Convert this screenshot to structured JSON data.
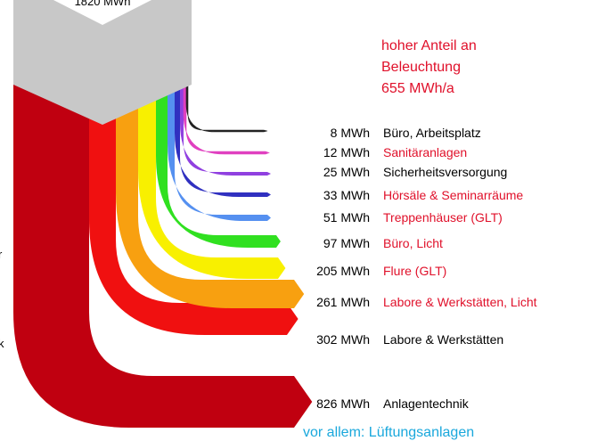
{
  "top_label": "1820 MWh",
  "annotation": {
    "lines": [
      "hoher Anteil an",
      "Beleuchtung",
      "655 MWh/a"
    ]
  },
  "flows": [
    {
      "value": "8 MWh",
      "name": "Büro, Arbeitsplatz"
    },
    {
      "value": "12 MWh",
      "name": "Sanitäranlagen"
    },
    {
      "value": "25 MWh",
      "name": "Sicherheitsversorgung"
    },
    {
      "value": "33 MWh",
      "name": "Hörsäle & Seminarräume"
    },
    {
      "value": "51 MWh",
      "name": "Treppenhäuser (GLT)"
    },
    {
      "value": "97 MWh",
      "name": "Büro, Licht"
    },
    {
      "value": "205 MWh",
      "name": "Flure (GLT)"
    },
    {
      "value": "261 MWh",
      "name": "Labore & Werkstätten, Licht"
    },
    {
      "value": "302 MWh",
      "name": "Labore & Werkstätten"
    },
    {
      "value": "826 MWh",
      "name": "Anlagentechnik"
    }
  ],
  "footer": "vor allem: Lüftungsanlagen",
  "edge_fragments": [
    "r",
    "k"
  ]
}
